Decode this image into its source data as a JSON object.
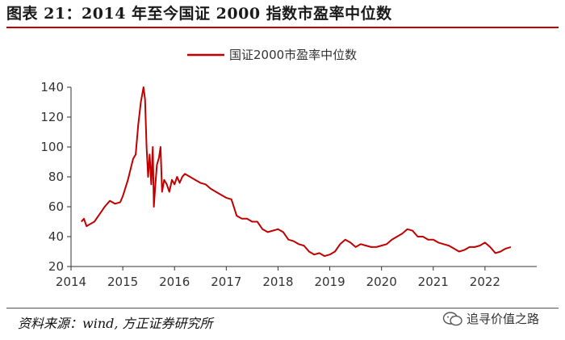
{
  "title": "图表 21：2014 年至今国证 2000 指数市盈率中位数",
  "source": "资料来源：wind, 方正证券研究所",
  "watermark": "追寻价值之路",
  "colors": {
    "series": "#c00000",
    "accent": "#c40000"
  },
  "chart_data": {
    "type": "line",
    "title": "",
    "xlabel": "",
    "ylabel": "",
    "xlim": [
      2014,
      2022.6
    ],
    "ylim": [
      20,
      140
    ],
    "y_ticks": [
      20,
      40,
      60,
      80,
      100,
      120,
      140
    ],
    "x_ticks": [
      "2014",
      "2015",
      "2016",
      "2017",
      "2018",
      "2019",
      "2020",
      "2021",
      "2022"
    ],
    "grid": false,
    "legend": "top-center",
    "series": [
      {
        "name": "国证2000市盈率中位数",
        "x": [
          2014.2,
          2014.25,
          2014.3,
          2014.35,
          2014.45,
          2014.55,
          2014.65,
          2014.75,
          2014.85,
          2014.95,
          2015.0,
          2015.1,
          2015.2,
          2015.25,
          2015.3,
          2015.35,
          2015.4,
          2015.43,
          2015.46,
          2015.49,
          2015.52,
          2015.55,
          2015.58,
          2015.6,
          2015.63,
          2015.66,
          2015.7,
          2015.73,
          2015.76,
          2015.8,
          2015.85,
          2015.9,
          2015.95,
          2016.0,
          2016.05,
          2016.1,
          2016.15,
          2016.2,
          2016.3,
          2016.4,
          2016.5,
          2016.6,
          2016.7,
          2016.8,
          2016.9,
          2017.0,
          2017.1,
          2017.2,
          2017.3,
          2017.4,
          2017.5,
          2017.6,
          2017.7,
          2017.8,
          2017.9,
          2018.0,
          2018.1,
          2018.2,
          2018.3,
          2018.4,
          2018.5,
          2018.6,
          2018.7,
          2018.8,
          2018.9,
          2019.0,
          2019.1,
          2019.2,
          2019.3,
          2019.4,
          2019.5,
          2019.6,
          2019.7,
          2019.8,
          2019.9,
          2020.0,
          2020.1,
          2020.2,
          2020.3,
          2020.4,
          2020.5,
          2020.6,
          2020.7,
          2020.8,
          2020.9,
          2021.0,
          2021.1,
          2021.2,
          2021.3,
          2021.4,
          2021.5,
          2021.6,
          2021.7,
          2021.8,
          2021.9,
          2022.0,
          2022.1,
          2022.2,
          2022.3,
          2022.4,
          2022.5
        ],
        "y": [
          50,
          52,
          47,
          48,
          50,
          55,
          60,
          64,
          62,
          63,
          67,
          78,
          92,
          95,
          115,
          130,
          140,
          132,
          100,
          80,
          95,
          75,
          100,
          60,
          75,
          88,
          93,
          100,
          70,
          78,
          75,
          70,
          78,
          75,
          80,
          76,
          80,
          82,
          80,
          78,
          76,
          75,
          72,
          70,
          68,
          66,
          65,
          54,
          52,
          52,
          50,
          50,
          45,
          43,
          44,
          45,
          43,
          38,
          37,
          35,
          34,
          30,
          28,
          29,
          27,
          28,
          30,
          35,
          38,
          36,
          33,
          35,
          34,
          33,
          33,
          34,
          35,
          38,
          40,
          42,
          45,
          44,
          40,
          40,
          38,
          38,
          36,
          35,
          34,
          32,
          30,
          31,
          33,
          33,
          34,
          36,
          33,
          29,
          30,
          32,
          33
        ]
      }
    ]
  }
}
